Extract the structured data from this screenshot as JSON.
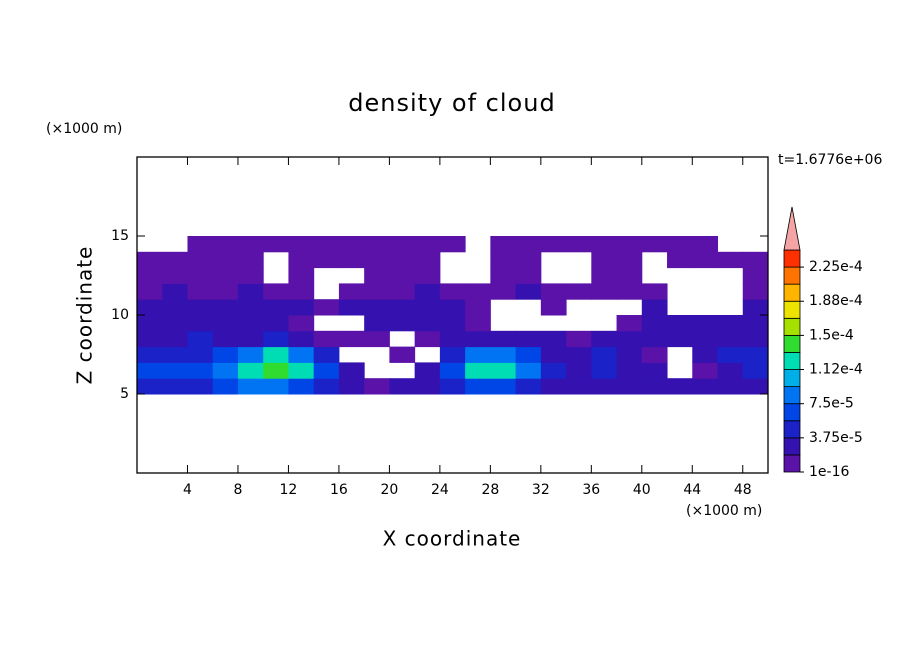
{
  "chart_data": {
    "type": "contour",
    "title": "density of cloud",
    "x_label": "X coordinate",
    "y_label": "Z coordinate",
    "x_unit": "(×1000 m)",
    "y_unit": "(×1000 m)",
    "time_label": "t=1.6776e+06",
    "xlim": [
      0,
      50
    ],
    "ylim": [
      0,
      20
    ],
    "xticks": [
      4,
      8,
      12,
      16,
      20,
      24,
      28,
      32,
      36,
      40,
      44,
      48
    ],
    "yticks": [
      5,
      10,
      15
    ],
    "x": [
      1,
      3,
      5,
      7,
      9,
      11,
      13,
      15,
      17,
      19,
      21,
      23,
      25,
      27,
      29,
      31,
      33,
      35,
      37,
      39,
      41,
      43,
      45,
      47,
      49
    ],
    "y": [
      5.5,
      6.5,
      7.5,
      8.5,
      9.5,
      10.5,
      11.5,
      12.5,
      13.5,
      14.5
    ],
    "z": [
      [
        5e-05,
        5e-05,
        5e-05,
        7e-05,
        9e-05,
        9e-05,
        7e-05,
        5e-05,
        3e-05,
        1e-05,
        3e-05,
        3e-05,
        5e-05,
        7e-05,
        7e-05,
        5e-05,
        3e-05,
        3e-05,
        3e-05,
        3e-05,
        3e-05,
        3e-05,
        3e-05,
        3e-05,
        3e-05
      ],
      [
        7e-05,
        7e-05,
        7e-05,
        9e-05,
        0.00012,
        0.00014,
        0.00012,
        7e-05,
        3e-05,
        null,
        null,
        3e-05,
        7e-05,
        0.00012,
        0.00012,
        9e-05,
        5e-05,
        3e-05,
        5e-05,
        3e-05,
        3e-05,
        null,
        1e-05,
        3e-05,
        5e-05
      ],
      [
        5e-05,
        5e-05,
        5e-05,
        7e-05,
        9e-05,
        0.00012,
        9e-05,
        5e-05,
        null,
        null,
        1e-05,
        null,
        5e-05,
        9e-05,
        9e-05,
        7e-05,
        3e-05,
        3e-05,
        5e-05,
        3e-05,
        1e-05,
        null,
        3e-05,
        5e-05,
        5e-05
      ],
      [
        3e-05,
        3e-05,
        5e-05,
        3e-05,
        3e-05,
        5e-05,
        3e-05,
        1e-05,
        1e-05,
        1e-05,
        null,
        1e-05,
        3e-05,
        3e-05,
        3e-05,
        3e-05,
        3e-05,
        1e-05,
        3e-05,
        3e-05,
        3e-05,
        3e-05,
        3e-05,
        3e-05,
        3e-05
      ],
      [
        3e-05,
        3e-05,
        3e-05,
        3e-05,
        3e-05,
        3e-05,
        1e-05,
        null,
        null,
        3e-05,
        3e-05,
        3e-05,
        3e-05,
        1e-05,
        null,
        null,
        null,
        null,
        null,
        1e-05,
        3e-05,
        3e-05,
        3e-05,
        3e-05,
        3e-05
      ],
      [
        3e-05,
        3e-05,
        3e-05,
        3e-05,
        3e-05,
        3e-05,
        3e-05,
        1e-05,
        3e-05,
        3e-05,
        3e-05,
        3e-05,
        3e-05,
        1e-05,
        null,
        null,
        1e-05,
        null,
        null,
        null,
        3e-05,
        null,
        null,
        null,
        3e-05
      ],
      [
        1e-05,
        3e-05,
        1e-05,
        1e-05,
        3e-05,
        1e-05,
        1e-05,
        null,
        1e-05,
        1e-05,
        1e-05,
        3e-05,
        1e-05,
        1e-05,
        1e-05,
        3e-05,
        1e-05,
        1e-05,
        1e-05,
        1e-05,
        1e-05,
        null,
        null,
        null,
        1e-05
      ],
      [
        1e-05,
        1e-05,
        1e-05,
        1e-05,
        1e-05,
        null,
        1e-05,
        null,
        null,
        1e-05,
        1e-05,
        1e-05,
        null,
        null,
        1e-05,
        1e-05,
        null,
        null,
        1e-05,
        1e-05,
        null,
        null,
        null,
        null,
        1e-05
      ],
      [
        1e-05,
        1e-05,
        1e-05,
        1e-05,
        1e-05,
        null,
        1e-05,
        1e-05,
        1e-05,
        1e-05,
        1e-05,
        1e-05,
        null,
        null,
        1e-05,
        1e-05,
        null,
        null,
        1e-05,
        1e-05,
        null,
        1e-05,
        1e-05,
        1e-05,
        1e-05
      ],
      [
        null,
        null,
        1e-05,
        1e-05,
        1e-05,
        1e-05,
        1e-05,
        1e-05,
        1e-05,
        1e-05,
        1e-05,
        1e-05,
        1e-05,
        null,
        1e-05,
        1e-05,
        1e-05,
        1e-05,
        1e-05,
        1e-05,
        1e-05,
        1e-05,
        1e-05,
        null,
        null
      ]
    ],
    "levels": [
      1e-16,
      1.875e-05,
      3.75e-05,
      5.625e-05,
      7.5e-05,
      9.375e-05,
      0.0001125,
      0.00013125,
      0.00015,
      0.00016875,
      0.0001875,
      0.00020625,
      0.000225,
      0.00024375
    ],
    "colors": [
      "#5a12a8",
      "#3512b0",
      "#1a22c8",
      "#0046e6",
      "#0074f2",
      "#00aee8",
      "#00dcb4",
      "#30dc30",
      "#a6e000",
      "#ece400",
      "#ffb400",
      "#ff7400",
      "#ff3000"
    ],
    "extend_color": "#f4a4a4",
    "colorbar_ticks": [
      {
        "value": 1e-16,
        "label": "1e-16"
      },
      {
        "value": 3.75e-05,
        "label": "3.75e-5"
      },
      {
        "value": 7.5e-05,
        "label": "7.5e-5"
      },
      {
        "value": 0.0001125,
        "label": "1.12e-4"
      },
      {
        "value": 0.00015,
        "label": "1.5e-4"
      },
      {
        "value": 0.0001875,
        "label": "1.88e-4"
      },
      {
        "value": 0.000225,
        "label": "2.25e-4"
      }
    ]
  }
}
